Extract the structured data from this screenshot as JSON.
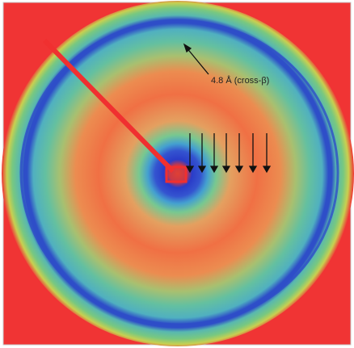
{
  "annotation": "4.8 Å (cross-β)"
}
